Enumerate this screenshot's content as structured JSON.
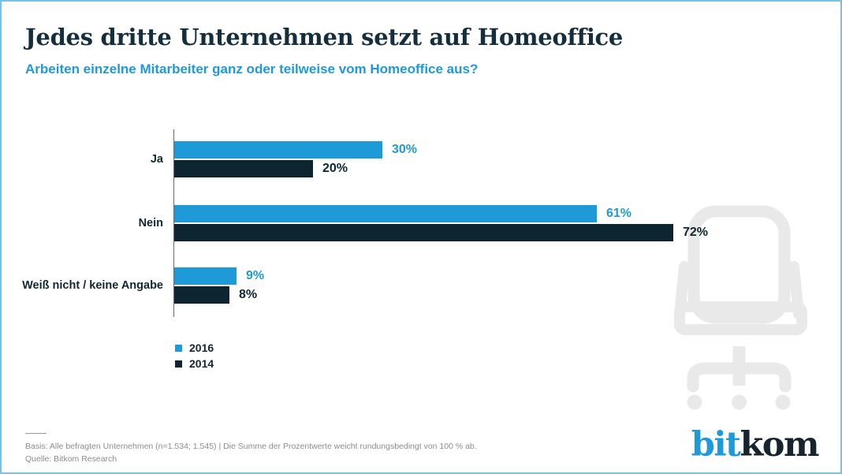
{
  "header": {
    "title": "Jedes dritte Unternehmen setzt auf Homeoffice",
    "subtitle": "Arbeiten einzelne Mitarbeiter ganz oder teilweise vom Homeoffice aus?"
  },
  "chart_data": {
    "type": "bar",
    "orientation": "horizontal",
    "categories": [
      "Ja",
      "Nein",
      "Weiß nicht / keine Angabe"
    ],
    "series": [
      {
        "name": "2016",
        "color": "#1f9ad8",
        "values": [
          30,
          61,
          9
        ]
      },
      {
        "name": "2014",
        "color": "#0d2530",
        "values": [
          20,
          72,
          8
        ]
      }
    ],
    "value_suffix": "%",
    "xlim": [
      0,
      100
    ],
    "grid": false,
    "legend_position": "bottom-left",
    "data_labels": true
  },
  "footer": {
    "basis": "Basis: Alle befragten Unternehmen (n=1.534; 1.545) | Die Summe der Prozentwerte weicht rundungsbedingt von 100 % ab.",
    "source": "Quelle: Bitkom Research"
  },
  "logo": {
    "part1": "bit",
    "part2": "kom"
  },
  "decor": {
    "icon": "office-chair-icon"
  },
  "colors": {
    "accent_blue": "#1f9ad8",
    "dark_navy": "#0d2530",
    "title_color": "#152e3d",
    "footer_text": "#8c8c8c",
    "border": "#7ac1e5",
    "chair_gray": "#e9e9e9"
  }
}
